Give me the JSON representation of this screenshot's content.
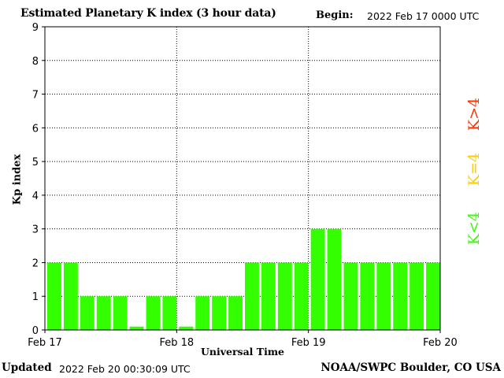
{
  "header": {
    "title": "Estimated Planetary K index (3 hour data)",
    "begin_label": "Begin:",
    "begin_value": "2022 Feb 17 0000 UTC"
  },
  "footer": {
    "updated_label": "Updated",
    "updated_value": "2022 Feb 20 00:30:09 UTC",
    "credit": "NOAA/SWPC Boulder, CO USA"
  },
  "legend": [
    {
      "text": "K>4",
      "color": "#ff3300"
    },
    {
      "text": "K=4",
      "color": "#ffcc00"
    },
    {
      "text": "K<4",
      "color": "#33ff00"
    }
  ],
  "chart_data": {
    "type": "bar",
    "title": "Estimated Planetary K index (3 hour data)",
    "xlabel": "Universal Time",
    "ylabel": "Kp index",
    "ylim": [
      0,
      9
    ],
    "yticks": [
      0,
      1,
      2,
      3,
      4,
      5,
      6,
      7,
      8,
      9
    ],
    "xticks": [
      "Feb 17",
      "Feb 18",
      "Feb 19",
      "Feb 20"
    ],
    "grid": true,
    "bar_color": "#33ff00",
    "values": [
      2,
      2,
      1,
      1,
      1,
      0.1,
      1,
      1,
      0.1,
      1,
      1,
      1,
      2,
      2,
      2,
      2,
      3,
      3,
      2,
      2,
      2,
      2,
      2,
      2
    ]
  }
}
